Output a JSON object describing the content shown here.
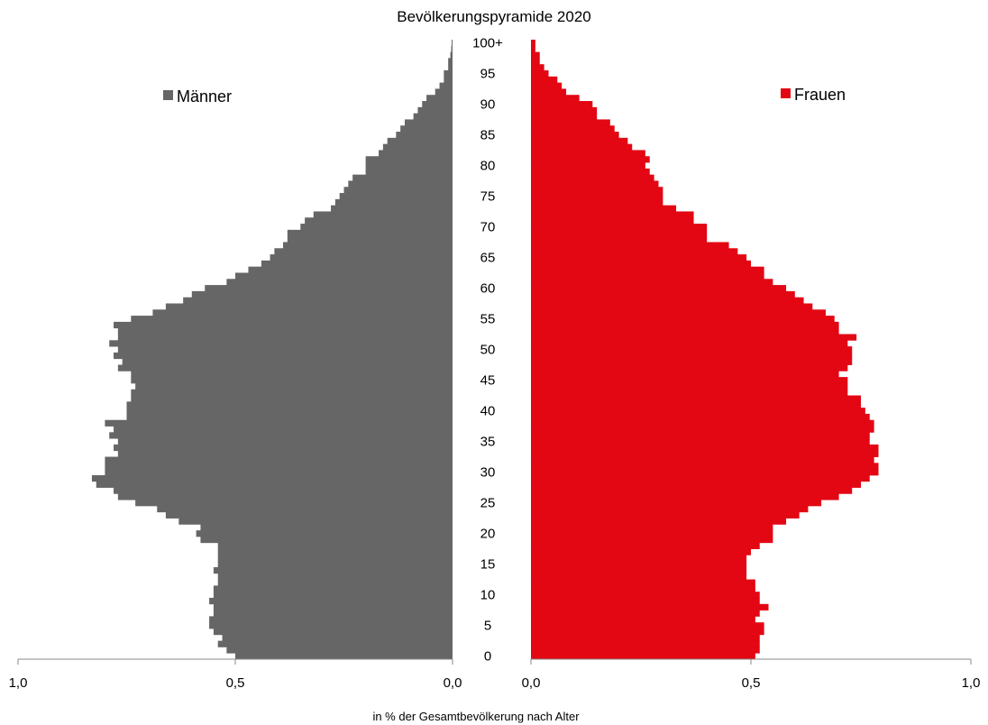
{
  "chart_data": {
    "type": "bar",
    "title": "Bevölkerungspyramide 2020",
    "xlabel": "in % der Gesamtbevölkerung nach Alter",
    "xlim": [
      0,
      1.0
    ],
    "x_tick_labels": [
      "1,0",
      "0,5",
      "0,0",
      "0,0",
      "0,5",
      "1,0"
    ],
    "age_tick_labels": [
      "0",
      "5",
      "10",
      "15",
      "20",
      "25",
      "30",
      "35",
      "40",
      "45",
      "50",
      "55",
      "60",
      "65",
      "70",
      "75",
      "80",
      "85",
      "90",
      "95",
      "100+"
    ],
    "categories_note": "ages 0 to 100+ (bottom to top)",
    "legend": {
      "position": "top-left / top-right"
    },
    "series": [
      {
        "name": "Männer",
        "color": "#666666",
        "values": [
          0.5,
          0.52,
          0.54,
          0.53,
          0.55,
          0.56,
          0.56,
          0.55,
          0.55,
          0.56,
          0.55,
          0.55,
          0.54,
          0.54,
          0.55,
          0.54,
          0.54,
          0.54,
          0.54,
          0.58,
          0.59,
          0.58,
          0.63,
          0.66,
          0.68,
          0.73,
          0.77,
          0.78,
          0.82,
          0.83,
          0.8,
          0.8,
          0.8,
          0.77,
          0.78,
          0.77,
          0.79,
          0.78,
          0.8,
          0.75,
          0.75,
          0.75,
          0.74,
          0.74,
          0.73,
          0.74,
          0.74,
          0.77,
          0.76,
          0.78,
          0.77,
          0.79,
          0.77,
          0.77,
          0.78,
          0.74,
          0.69,
          0.66,
          0.62,
          0.6,
          0.57,
          0.52,
          0.5,
          0.47,
          0.44,
          0.42,
          0.41,
          0.39,
          0.38,
          0.38,
          0.35,
          0.34,
          0.32,
          0.28,
          0.27,
          0.26,
          0.25,
          0.24,
          0.23,
          0.2,
          0.2,
          0.2,
          0.17,
          0.16,
          0.15,
          0.13,
          0.12,
          0.11,
          0.09,
          0.08,
          0.07,
          0.06,
          0.04,
          0.03,
          0.02,
          0.02,
          0.01,
          0.01,
          0.005,
          0.003,
          0.002
        ]
      },
      {
        "name": "Frauen",
        "color": "#e30613",
        "values": [
          0.51,
          0.52,
          0.52,
          0.52,
          0.53,
          0.53,
          0.51,
          0.52,
          0.54,
          0.52,
          0.52,
          0.51,
          0.51,
          0.49,
          0.49,
          0.49,
          0.49,
          0.5,
          0.52,
          0.55,
          0.55,
          0.55,
          0.58,
          0.61,
          0.63,
          0.66,
          0.7,
          0.73,
          0.75,
          0.77,
          0.79,
          0.79,
          0.78,
          0.79,
          0.79,
          0.77,
          0.77,
          0.78,
          0.78,
          0.77,
          0.76,
          0.75,
          0.75,
          0.72,
          0.72,
          0.72,
          0.7,
          0.72,
          0.73,
          0.73,
          0.73,
          0.72,
          0.74,
          0.7,
          0.7,
          0.69,
          0.67,
          0.64,
          0.62,
          0.6,
          0.58,
          0.55,
          0.53,
          0.53,
          0.5,
          0.49,
          0.47,
          0.45,
          0.4,
          0.4,
          0.4,
          0.37,
          0.37,
          0.33,
          0.3,
          0.3,
          0.3,
          0.29,
          0.28,
          0.27,
          0.26,
          0.27,
          0.26,
          0.23,
          0.22,
          0.2,
          0.19,
          0.18,
          0.15,
          0.15,
          0.14,
          0.11,
          0.08,
          0.07,
          0.06,
          0.04,
          0.03,
          0.02,
          0.02,
          0.01,
          0.01
        ]
      }
    ]
  }
}
